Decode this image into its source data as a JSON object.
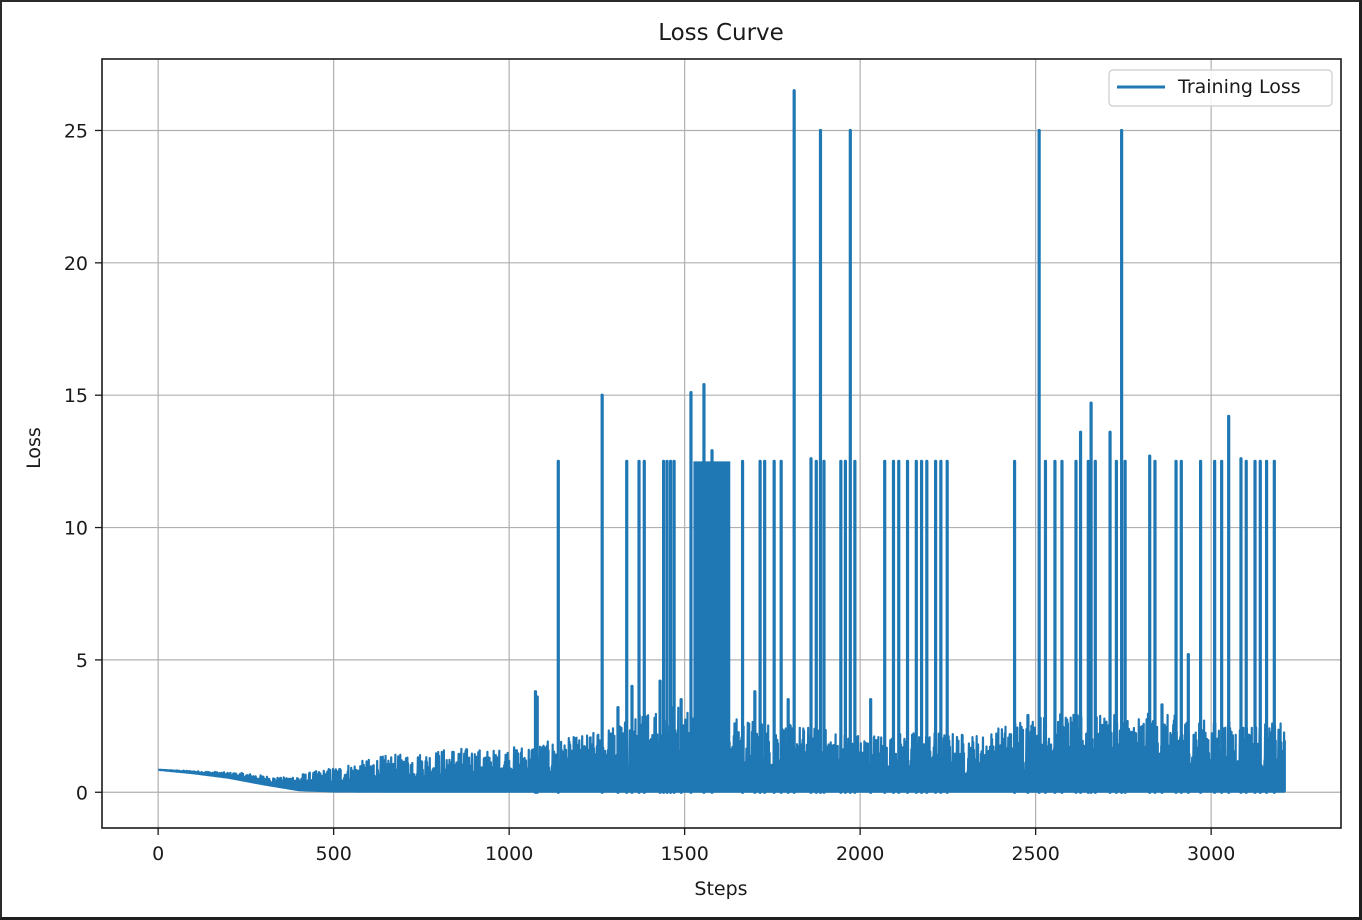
{
  "chart_data": {
    "type": "line",
    "title": "Loss Curve",
    "xlabel": "Steps",
    "ylabel": "Loss",
    "xlim": [
      -160,
      3370
    ],
    "ylim": [
      -1.35,
      27.7
    ],
    "xticks": [
      0,
      500,
      1000,
      1500,
      2000,
      2500,
      3000
    ],
    "yticks": [
      0,
      5,
      10,
      15,
      20,
      25
    ],
    "grid": true,
    "legend_position": "top-right",
    "series_color": "#1f77b4",
    "series": [
      {
        "name": "Training Loss",
        "x_start": 0,
        "x_end": 3210,
        "baseline": [
          [
            0,
            0.85
          ],
          [
            100,
            0.72
          ],
          [
            200,
            0.55
          ],
          [
            300,
            0.3
          ],
          [
            400,
            0.08
          ],
          [
            500,
            0.03
          ],
          [
            700,
            0.02
          ],
          [
            1000,
            0.02
          ],
          [
            3210,
            0.02
          ]
        ],
        "envelope": [
          [
            0,
            0.85
          ],
          [
            150,
            0.78
          ],
          [
            250,
            0.72
          ],
          [
            350,
            0.55
          ],
          [
            450,
            0.8
          ],
          [
            550,
            1.1
          ],
          [
            650,
            1.4
          ],
          [
            750,
            1.5
          ],
          [
            850,
            1.7
          ],
          [
            950,
            1.6
          ],
          [
            1050,
            1.8
          ],
          [
            1150,
            2.0
          ],
          [
            1250,
            2.3
          ],
          [
            1350,
            2.8
          ],
          [
            1450,
            3.6
          ],
          [
            1550,
            3.0
          ],
          [
            1650,
            2.8
          ],
          [
            1800,
            2.6
          ],
          [
            2000,
            2.2
          ],
          [
            2200,
            2.3
          ],
          [
            2350,
            2.2
          ],
          [
            2450,
            2.8
          ],
          [
            2550,
            3.0
          ],
          [
            2700,
            2.9
          ],
          [
            2850,
            3.0
          ],
          [
            3000,
            2.7
          ],
          [
            3210,
            2.6
          ]
        ],
        "dense_block": {
          "x_start": 1525,
          "x_end": 1630,
          "value": 12.5
        },
        "spikes": [
          [
            1075,
            3.8
          ],
          [
            1080,
            3.6
          ],
          [
            1140,
            12.5
          ],
          [
            1265,
            15.0
          ],
          [
            1310,
            3.2
          ],
          [
            1335,
            12.5
          ],
          [
            1350,
            4.0
          ],
          [
            1370,
            12.5
          ],
          [
            1385,
            12.5
          ],
          [
            1430,
            4.2
          ],
          [
            1440,
            12.5
          ],
          [
            1450,
            12.5
          ],
          [
            1460,
            12.5
          ],
          [
            1470,
            12.5
          ],
          [
            1490,
            3.5
          ],
          [
            1518,
            15.1
          ],
          [
            1555,
            15.4
          ],
          [
            1578,
            12.9
          ],
          [
            1665,
            12.5
          ],
          [
            1700,
            3.8
          ],
          [
            1715,
            12.5
          ],
          [
            1728,
            12.5
          ],
          [
            1755,
            12.5
          ],
          [
            1775,
            12.5
          ],
          [
            1795,
            3.5
          ],
          [
            1812,
            26.5
          ],
          [
            1860,
            12.6
          ],
          [
            1875,
            12.5
          ],
          [
            1887,
            25.0
          ],
          [
            1897,
            12.5
          ],
          [
            1945,
            12.5
          ],
          [
            1958,
            12.5
          ],
          [
            1972,
            25.0
          ],
          [
            1985,
            12.5
          ],
          [
            2030,
            3.5
          ],
          [
            2070,
            12.5
          ],
          [
            2095,
            12.5
          ],
          [
            2110,
            12.5
          ],
          [
            2135,
            12.5
          ],
          [
            2160,
            12.5
          ],
          [
            2175,
            12.5
          ],
          [
            2190,
            12.5
          ],
          [
            2215,
            12.5
          ],
          [
            2230,
            12.5
          ],
          [
            2248,
            12.5
          ],
          [
            2440,
            12.5
          ],
          [
            2478,
            2.9
          ],
          [
            2510,
            25.0
          ],
          [
            2528,
            12.5
          ],
          [
            2555,
            12.5
          ],
          [
            2575,
            12.5
          ],
          [
            2615,
            12.5
          ],
          [
            2628,
            13.6
          ],
          [
            2650,
            12.5
          ],
          [
            2658,
            14.7
          ],
          [
            2670,
            12.5
          ],
          [
            2712,
            13.6
          ],
          [
            2730,
            12.5
          ],
          [
            2745,
            25.0
          ],
          [
            2755,
            12.5
          ],
          [
            2825,
            12.7
          ],
          [
            2840,
            12.5
          ],
          [
            2860,
            3.3
          ],
          [
            2900,
            12.5
          ],
          [
            2915,
            12.5
          ],
          [
            2935,
            5.2
          ],
          [
            2970,
            12.5
          ],
          [
            3010,
            12.5
          ],
          [
            3030,
            12.5
          ],
          [
            3050,
            14.2
          ],
          [
            3085,
            12.6
          ],
          [
            3100,
            12.5
          ],
          [
            3125,
            12.5
          ],
          [
            3140,
            12.5
          ],
          [
            3158,
            12.5
          ],
          [
            3180,
            12.5
          ]
        ]
      }
    ]
  }
}
